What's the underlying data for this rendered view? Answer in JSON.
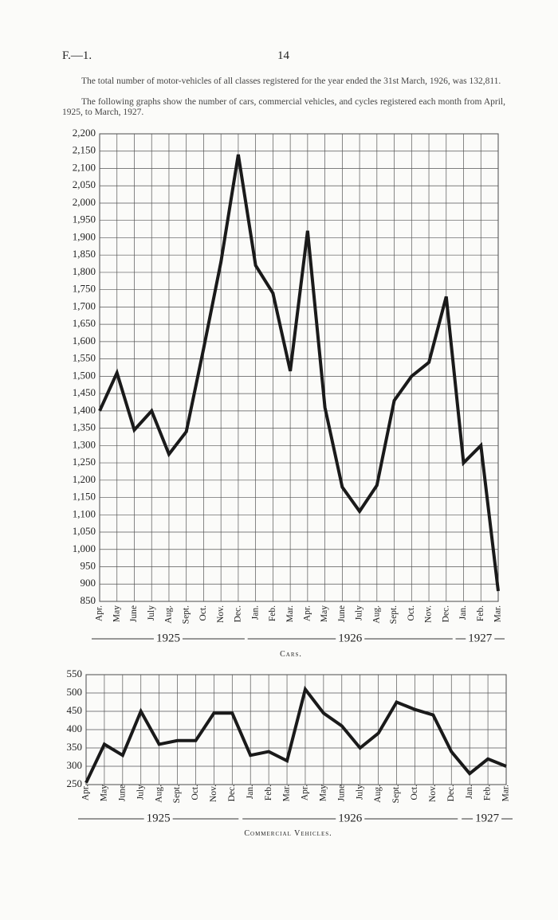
{
  "page": {
    "header_left": "F.—1.",
    "page_number": "14",
    "paragraphs": [
      "The total number of motor-vehicles of all classes registered for the year ended the 31st March, 1926, was 132,811.",
      "The following graphs show the number of cars, commercial vehicles, and cycles registered each month from April, 1925, to March, 1927."
    ]
  },
  "chart_data": [
    {
      "type": "line",
      "title": "Cars.",
      "categories": [
        "Apr.",
        "May",
        "June",
        "July",
        "Aug.",
        "Sept.",
        "Oct.",
        "Nov.",
        "Dec.",
        "Jan.",
        "Feb.",
        "Mar.",
        "Apr.",
        "May",
        "June",
        "July",
        "Aug.",
        "Sept.",
        "Oct.",
        "Nov.",
        "Dec.",
        "Jan.",
        "Feb.",
        "Mar."
      ],
      "years": [
        "1925",
        "1926",
        "1927"
      ],
      "series": [
        {
          "name": "Cars",
          "color": "#1a1a1a",
          "values": [
            1400,
            1510,
            1345,
            1400,
            1275,
            1340,
            1580,
            1830,
            2140,
            1820,
            1740,
            1515,
            1920,
            1410,
            1180,
            1110,
            1185,
            1430,
            1500,
            1540,
            1730,
            1250,
            1300,
            880
          ]
        }
      ],
      "ylim": [
        850,
        2200
      ],
      "yticks": [
        850,
        900,
        950,
        {
          "value": 1000,
          "label": "1,000"
        },
        {
          "value": 1050,
          "label": "1,050"
        },
        {
          "value": 1100,
          "label": "1,100"
        },
        {
          "value": 1150,
          "label": "1,150"
        },
        {
          "value": 1200,
          "label": "1,200"
        },
        {
          "value": 1250,
          "label": "1,250"
        },
        {
          "value": 1300,
          "label": "1,300"
        },
        {
          "value": 1350,
          "label": "1,350"
        },
        {
          "value": 1400,
          "label": "1,400"
        },
        {
          "value": 1450,
          "label": "1,450"
        },
        {
          "value": 1500,
          "label": "1,500"
        },
        {
          "value": 1550,
          "label": "1,550"
        },
        {
          "value": 1600,
          "label": "1,600"
        },
        {
          "value": 1650,
          "label": "1,650"
        },
        {
          "value": 1700,
          "label": "1,700"
        },
        {
          "value": 1750,
          "label": "1,750"
        },
        {
          "value": 1800,
          "label": "1,800"
        },
        {
          "value": 1850,
          "label": "1,850"
        },
        {
          "value": 1900,
          "label": "1,900"
        },
        {
          "value": 1950,
          "label": "1,950"
        },
        {
          "value": 2000,
          "label": "2,000"
        },
        {
          "value": 2050,
          "label": "2,050"
        },
        {
          "value": 2100,
          "label": "2,100"
        },
        {
          "value": 2150,
          "label": "2,150"
        },
        {
          "value": 2200,
          "label": "2,200"
        }
      ],
      "grid": true
    },
    {
      "type": "line",
      "title": "Commercial Vehicles.",
      "categories": [
        "Apr.",
        "May",
        "June",
        "July",
        "Aug.",
        "Sept.",
        "Oct.",
        "Nov.",
        "Dec.",
        "Jan.",
        "Feb.",
        "Mar.",
        "Apr.",
        "May",
        "June",
        "July",
        "Aug.",
        "Sept.",
        "Oct.",
        "Nov.",
        "Dec.",
        "Jan.",
        "Feb.",
        "Mar."
      ],
      "years": [
        "1925",
        "1926",
        "1927"
      ],
      "series": [
        {
          "name": "Commercial Vehicles",
          "color": "#1a1a1a",
          "values": [
            255,
            360,
            330,
            450,
            360,
            370,
            370,
            445,
            445,
            330,
            340,
            315,
            510,
            445,
            410,
            350,
            390,
            475,
            455,
            440,
            340,
            280,
            320,
            300
          ]
        }
      ],
      "ylim": [
        250,
        550
      ],
      "yticks": [
        250,
        300,
        350,
        400,
        450,
        500,
        550
      ],
      "grid": true
    }
  ]
}
